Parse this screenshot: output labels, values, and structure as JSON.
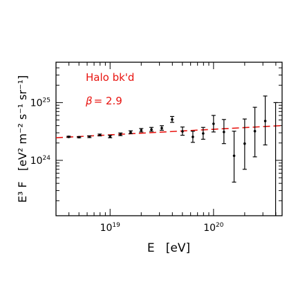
{
  "chart_data": {
    "type": "scatter",
    "title": "",
    "xlabel": "E   [eV]",
    "ylabel": "E³ F   [eV² m⁻² s⁻¹ sr⁻¹]",
    "x_scale": "log",
    "y_scale": "log",
    "xlim": [
      3e+18,
      4.6e+20
    ],
    "ylim": [
      1.1e+23,
      5e+25
    ],
    "x_tick_labels": [
      {
        "value": 1e+19,
        "base": "10",
        "exp": "19"
      },
      {
        "value": 1e+20,
        "base": "10",
        "exp": "20"
      }
    ],
    "y_tick_labels": [
      {
        "value": 1e+24,
        "base": "10",
        "exp": "24"
      },
      {
        "value": 1e+25,
        "base": "10",
        "exp": "25"
      }
    ],
    "grid": false,
    "annotations": {
      "line1": "Halo bk'd",
      "line2_symbol": "β",
      "line2_value": "= 2.9"
    },
    "series": [
      {
        "kind": "points_with_error_bars",
        "color": "#000000",
        "points": [
          {
            "x": 3.98e+18,
            "y": 2.55e+24,
            "lo": 2.5e+24,
            "hi": 2.62e+24
          },
          {
            "x": 5.01e+18,
            "y": 2.52e+24,
            "lo": 2.46e+24,
            "hi": 2.58e+24
          },
          {
            "x": 6.31e+18,
            "y": 2.56e+24,
            "lo": 2.48e+24,
            "hi": 2.66e+24
          },
          {
            "x": 7.94e+18,
            "y": 2.75e+24,
            "lo": 2.65e+24,
            "hi": 2.85e+24
          },
          {
            "x": 1e+19,
            "y": 2.58e+24,
            "lo": 2.46e+24,
            "hi": 2.72e+24
          },
          {
            "x": 1.26e+19,
            "y": 2.82e+24,
            "lo": 2.68e+24,
            "hi": 2.98e+24
          },
          {
            "x": 1.58e+19,
            "y": 3.06e+24,
            "lo": 2.9e+24,
            "hi": 3.25e+24
          },
          {
            "x": 2e+19,
            "y": 3.32e+24,
            "lo": 3.1e+24,
            "hi": 3.56e+24
          },
          {
            "x": 2.51e+19,
            "y": 3.42e+24,
            "lo": 3.18e+24,
            "hi": 3.72e+24
          },
          {
            "x": 3.16e+19,
            "y": 3.62e+24,
            "lo": 3.32e+24,
            "hi": 3.98e+24
          },
          {
            "x": 3.98e+19,
            "y": 5.1e+24,
            "lo": 4.55e+24,
            "hi": 5.75e+24
          },
          {
            "x": 5.01e+19,
            "y": 3.18e+24,
            "lo": 2.72e+24,
            "hi": 3.78e+24
          },
          {
            "x": 6.31e+19,
            "y": 2.55e+24,
            "lo": 2.05e+24,
            "hi": 3.2e+24
          },
          {
            "x": 7.94e+19,
            "y": 2.92e+24,
            "lo": 2.32e+24,
            "hi": 3.72e+24
          },
          {
            "x": 1e+20,
            "y": 4.3e+24,
            "lo": 3.1e+24,
            "hi": 6e+24
          },
          {
            "x": 1.26e+20,
            "y": 3.1e+24,
            "lo": 1.95e+24,
            "hi": 5.1e+24
          },
          {
            "x": 1.58e+20,
            "y": 1.2e+24,
            "lo": 4.2e+23,
            "hi": 3.2e+24
          },
          {
            "x": 2e+20,
            "y": 1.95e+24,
            "lo": 7e+23,
            "hi": 5.2e+24
          },
          {
            "x": 2.51e+20,
            "y": 3.2e+24,
            "lo": 1.15e+24,
            "hi": 8.3e+24
          },
          {
            "x": 3.16e+20,
            "y": 4.8e+24,
            "lo": 1.85e+24,
            "hi": 1.3e+25
          },
          {
            "x": 3.98e+20,
            "y": null,
            "lo": 1.1e+23,
            "hi": 1e+25
          }
        ]
      },
      {
        "kind": "model_curve",
        "color": "#e8130f",
        "dash": true,
        "x": [
          3e+18,
          4.6e+20
        ],
        "y": [
          2.46e+24,
          4e+24
        ]
      }
    ]
  }
}
